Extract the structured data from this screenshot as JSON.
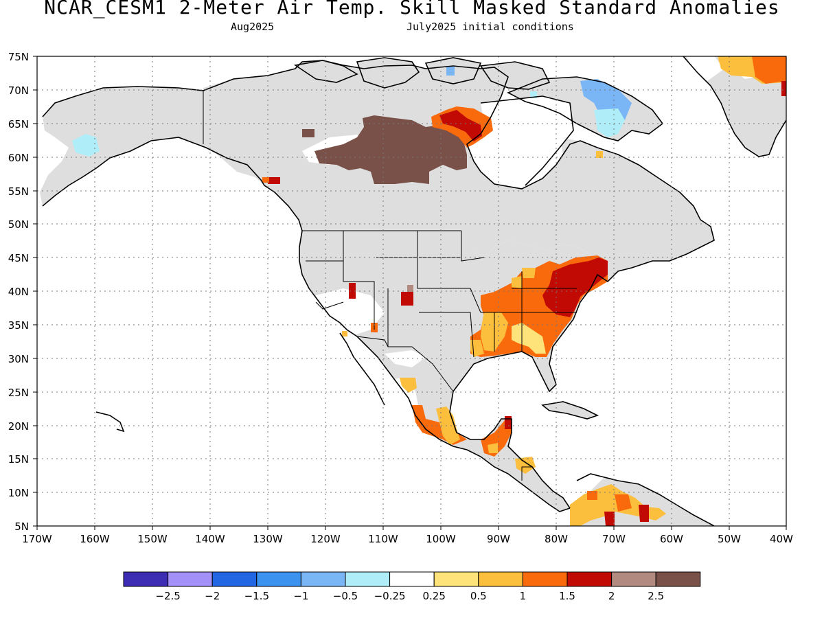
{
  "title": "NCAR_CESM1 2-Meter Air Temp. Skill Masked Standard Anomalies",
  "subtitle_left": "Aug2025",
  "subtitle_right": "July2025 initial conditions",
  "axes": {
    "lat_labels": [
      "75N",
      "70N",
      "65N",
      "60N",
      "55N",
      "50N",
      "45N",
      "40N",
      "35N",
      "30N",
      "25N",
      "20N",
      "15N",
      "10N",
      "5N"
    ],
    "lon_labels": [
      "170W",
      "160W",
      "150W",
      "140W",
      "130W",
      "120W",
      "110W",
      "100W",
      "90W",
      "80W",
      "70W",
      "60W",
      "50W",
      "40W"
    ],
    "gridlines": "dotted"
  },
  "colorbar": {
    "colors": [
      "#3c2db4",
      "#a391f9",
      "#2366e4",
      "#3b92ef",
      "#7ab6f5",
      "#afeef8",
      "#ffffff",
      "#fde37a",
      "#fbbe3d",
      "#f96a0d",
      "#c20a05",
      "#b28a80",
      "#7a5148"
    ],
    "labels": [
      "−2.5",
      "−2",
      "−1.5",
      "−1",
      "−0.5",
      "−0.25",
      "0.25",
      "0.5",
      "1",
      "1.5",
      "2",
      "2.5"
    ]
  },
  "colors": {
    "no_skill_gray": "#dedede",
    "coast": "#000000",
    "brown": "#7a5148"
  }
}
